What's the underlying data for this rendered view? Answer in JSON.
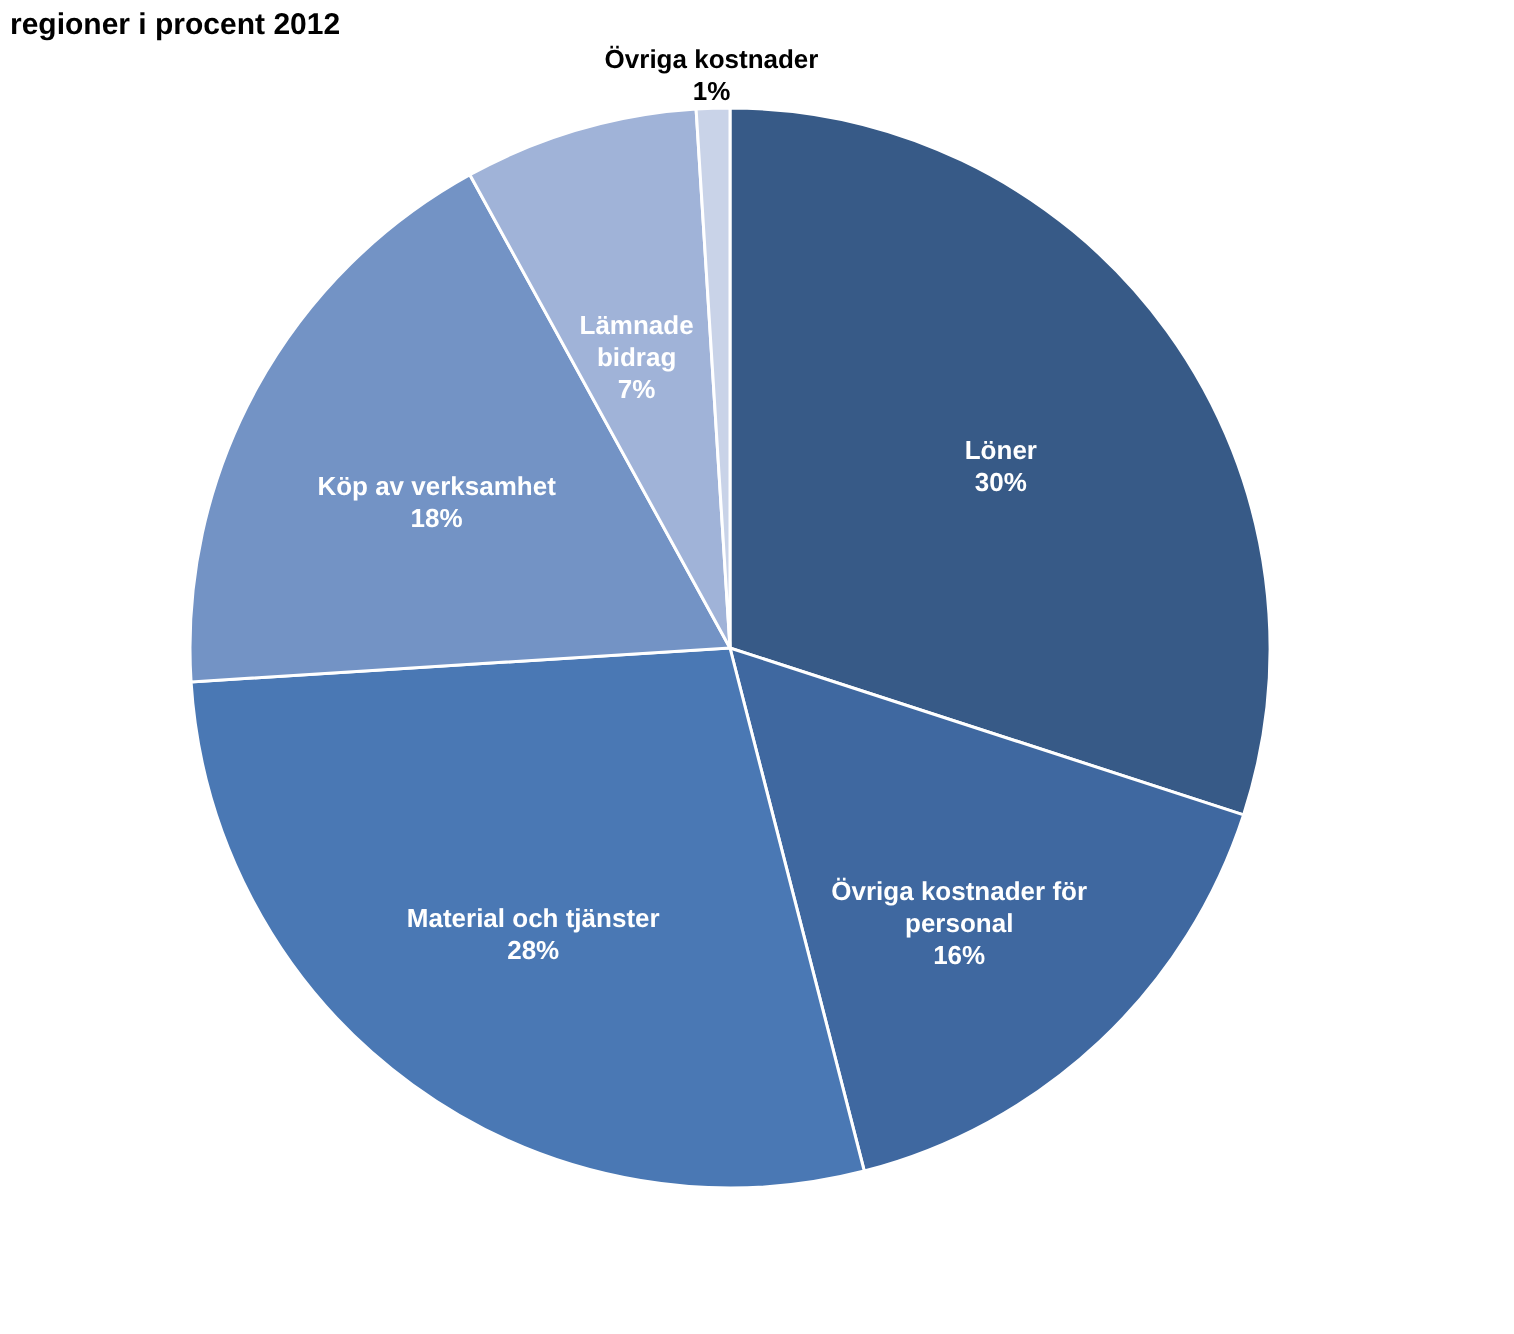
{
  "chart_data": {
    "type": "pie",
    "title": "regioner i procent 2012",
    "categories": [
      "Löner",
      "Övriga kostnader för personal",
      "Material och tjänster",
      "Köp av verksamhet",
      "Lämnade bidrag",
      "Övriga kostnader"
    ],
    "values": [
      30,
      16,
      28,
      18,
      7,
      1
    ],
    "colors": [
      "#375a87",
      "#3f68a0",
      "#4a78b4",
      "#7393c5",
      "#a0b3d8",
      "#c9d3e8"
    ],
    "value_labels": [
      "30%",
      "16%",
      "28%",
      "18%",
      "7%",
      "1%"
    ],
    "legend": false
  }
}
